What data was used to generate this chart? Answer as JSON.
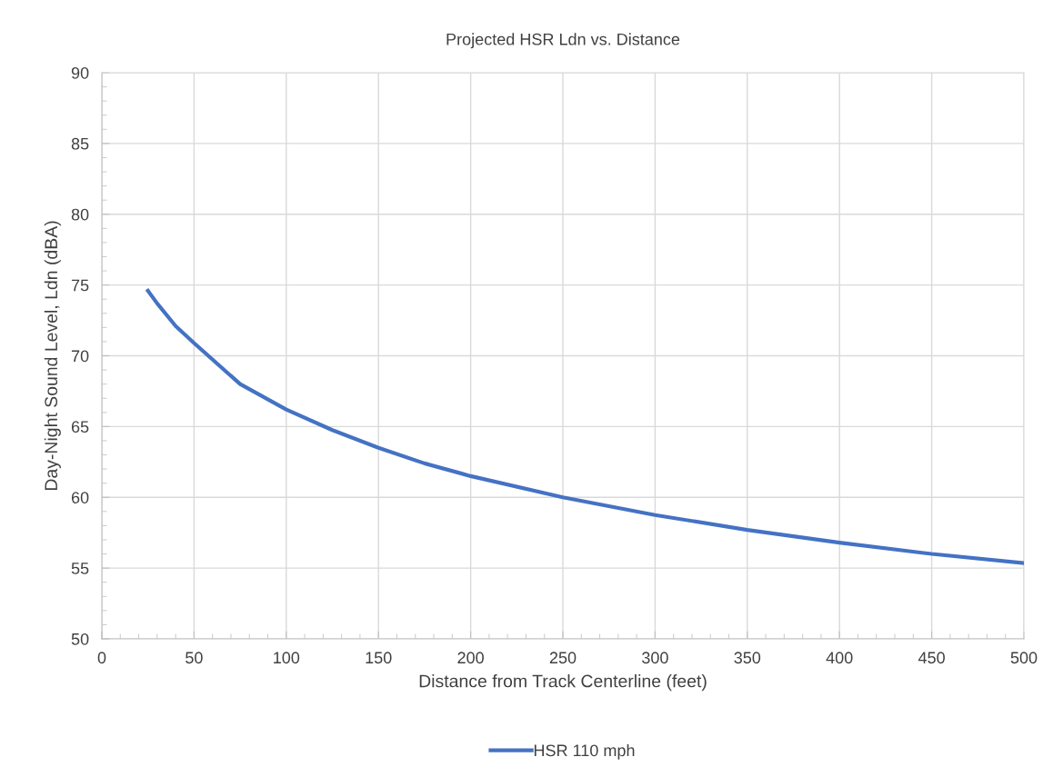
{
  "chart_data": {
    "type": "line",
    "title": "Projected HSR Ldn vs. Distance",
    "xlabel": "Distance from Track Centerline (feet)",
    "ylabel": "Day-Night Sound Level, Ldn (dBA)",
    "xlim": [
      0,
      500
    ],
    "xticks": [
      0,
      50,
      100,
      150,
      200,
      250,
      300,
      350,
      400,
      450,
      500
    ],
    "ylim": [
      50,
      90
    ],
    "yticks": [
      50,
      55,
      60,
      65,
      70,
      75,
      80,
      85,
      90
    ],
    "grid": true,
    "legend": "bottom",
    "marker": "none",
    "line_style": "solid",
    "series": [
      {
        "name": "HSR 110 mph",
        "color": "#4472c4",
        "x": [
          25,
          30,
          40,
          50,
          75,
          100,
          125,
          150,
          175,
          200,
          250,
          300,
          350,
          400,
          450,
          500
        ],
        "values": [
          74.6,
          73.7,
          72.1,
          70.9,
          68.0,
          66.2,
          64.75,
          63.5,
          62.4,
          61.5,
          60.0,
          58.75,
          57.7,
          56.8,
          56.0,
          55.35
        ]
      }
    ]
  }
}
